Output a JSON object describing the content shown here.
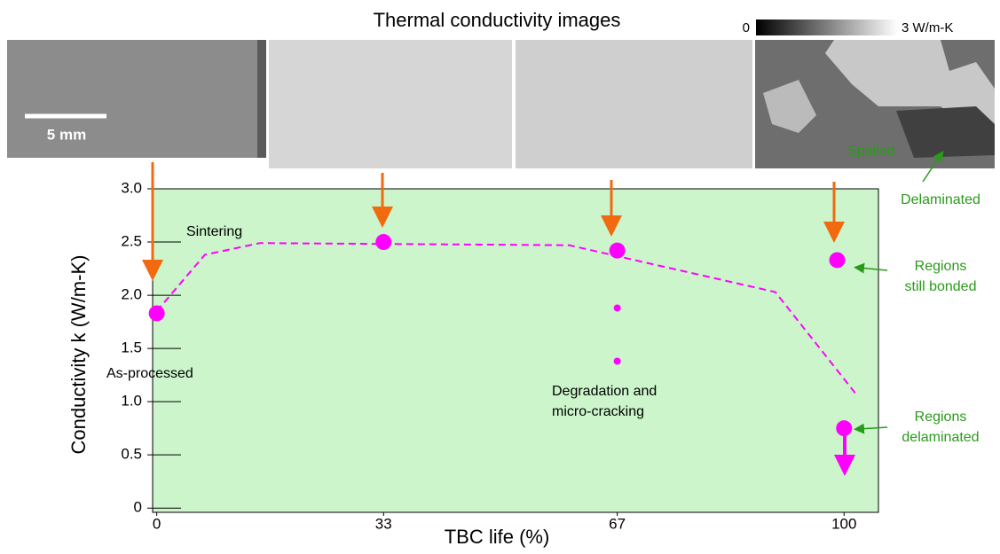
{
  "chart_data": {
    "type": "scatter",
    "title": "Thermal conductivity images",
    "colorbar": {
      "min": 0,
      "max": {
        "value": 3,
        "label": "3 W/m-K"
      }
    },
    "scale_bar": "5 mm",
    "x_label": "TBC life (%)",
    "y_label": "Conductivity k (W/m-K)",
    "xlim": [
      -0.6,
      105
    ],
    "ylim": [
      -0.04,
      3.0
    ],
    "xticks": [
      0,
      33,
      67,
      100
    ],
    "yticks": [
      {
        "value": 3.0,
        "label": "3.0"
      },
      {
        "value": 2.5,
        "label": "2.5"
      },
      {
        "value": 2.0,
        "label": "2.0"
      },
      {
        "value": 1.5,
        "label": "1.5"
      },
      {
        "value": 1.0,
        "label": "1.0"
      },
      {
        "value": 0.5,
        "label": "0.5"
      },
      0
    ],
    "background": "#ccf5cc",
    "points": {
      "color": "#ff00ff",
      "x": [
        0,
        33,
        67,
        99,
        100
      ],
      "y": [
        1.83,
        2.5,
        2.42,
        2.33,
        0.75
      ]
    },
    "small_points": {
      "color": "#ff00ff",
      "x": [
        67,
        67
      ],
      "y": [
        1.88,
        1.38
      ]
    },
    "trend": {
      "color": "#ff00ff",
      "x": [
        0,
        7,
        15,
        60,
        90,
        102
      ],
      "y": [
        1.85,
        2.38,
        2.49,
        2.47,
        2.03,
        1.05
      ]
    },
    "annotations": {
      "sintering": "Sintering",
      "as_processed": "As-processed",
      "degradation": [
        "Degradation and",
        "micro-cracking"
      ],
      "still_bonded": [
        "Regions",
        "still bonded"
      ],
      "delaminated_regions": [
        "Regions",
        "delaminated"
      ],
      "delaminated": "Delaminated",
      "spalled": "Spalled"
    }
  }
}
